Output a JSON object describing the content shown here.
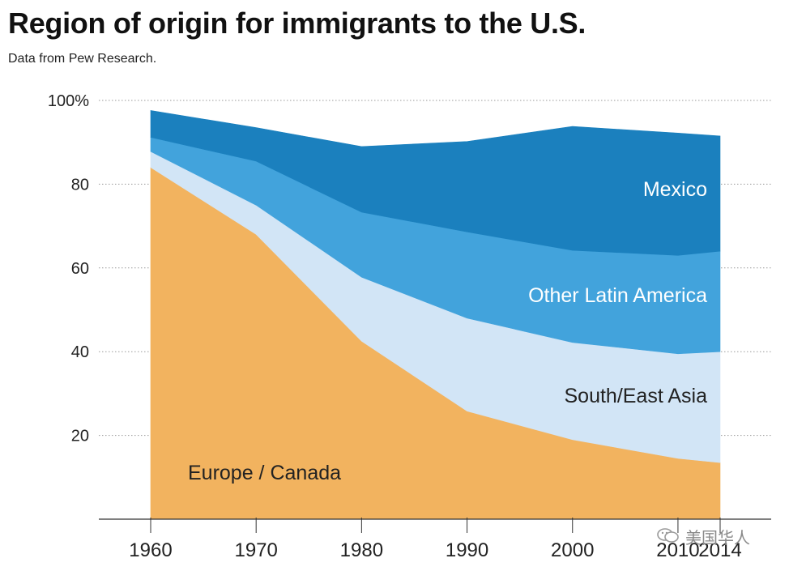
{
  "title": "Region of origin for immigrants to the U.S.",
  "subtitle": "Data from Pew Research.",
  "watermark": "美国华人",
  "colors": {
    "europe": "#F2B35F",
    "asia": "#D2E5F6",
    "latin": "#42A3DC",
    "mexico": "#1B80BE",
    "other": "#1B80BE",
    "grid": "#9a9a9a",
    "axis": "#333333",
    "text": "#222222",
    "label_light": "#ffffff",
    "label_dark": "#222222"
  },
  "chart_data": {
    "type": "area",
    "stacked": true,
    "title": "Region of origin for immigrants to the U.S.",
    "xlabel": "",
    "ylabel": "",
    "x": [
      1960,
      1970,
      1980,
      1990,
      2000,
      2010,
      2014
    ],
    "xticks": [
      "1960",
      "1970",
      "1980",
      "1990",
      "2000",
      "2010",
      "2014"
    ],
    "yticks": [
      20,
      40,
      60,
      80,
      100
    ],
    "ytick_labels": [
      "20",
      "40",
      "60",
      "80",
      "100%"
    ],
    "ylim": [
      0,
      100
    ],
    "grid": true,
    "series": [
      {
        "name": "Europe / Canada",
        "values": [
          84,
          68,
          42.5,
          25.8,
          19,
          14.5,
          13.5
        ]
      },
      {
        "name": "South/East Asia",
        "values": [
          3.8,
          7,
          15.3,
          22.2,
          23.2,
          25,
          26.5
        ]
      },
      {
        "name": "Other Latin America",
        "values": [
          3.4,
          10.5,
          15.5,
          20.6,
          22,
          23.5,
          24
        ]
      },
      {
        "name": "Mexico",
        "values": [
          6.4,
          8,
          15.7,
          21.6,
          29.6,
          29.2,
          27.5
        ]
      }
    ],
    "series_labels": [
      "Europe / Canada",
      "South/East Asia",
      "Other Latin America",
      "Mexico"
    ]
  }
}
